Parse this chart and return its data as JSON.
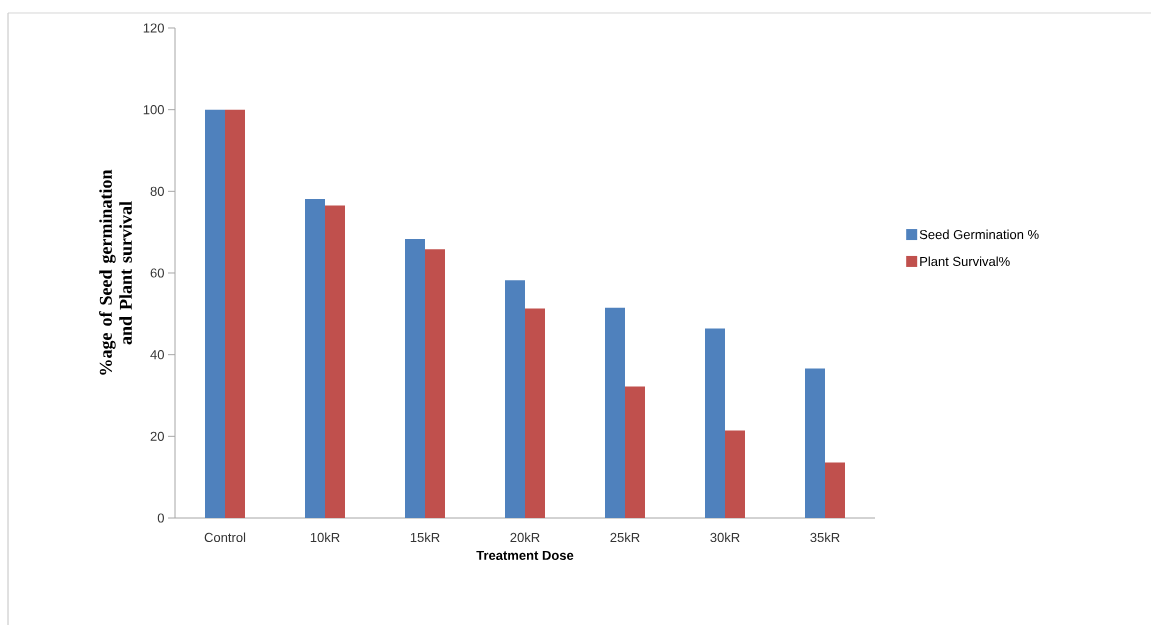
{
  "chart_data": {
    "type": "bar",
    "xlabel": "Treatment Dose",
    "ylabel": "%age of Seed germination and Plant survival",
    "categories": [
      "Control",
      "10kR",
      "15kR",
      "20kR",
      "25kR",
      "30kR",
      "35kR"
    ],
    "series": [
      {
        "name": "Seed Germination %",
        "color": "#4f81bd",
        "values": [
          100,
          78.1,
          68.3,
          58.2,
          51.5,
          46.4,
          36.6
        ]
      },
      {
        "name": "Plant Survival%",
        "color": "#c0504d",
        "values": [
          100,
          76.5,
          65.8,
          51.3,
          32.2,
          21.4,
          13.6
        ]
      }
    ],
    "ylim": [
      0,
      120
    ],
    "yticks": [
      0,
      20,
      40,
      60,
      80,
      100,
      120
    ],
    "legend": "right"
  }
}
